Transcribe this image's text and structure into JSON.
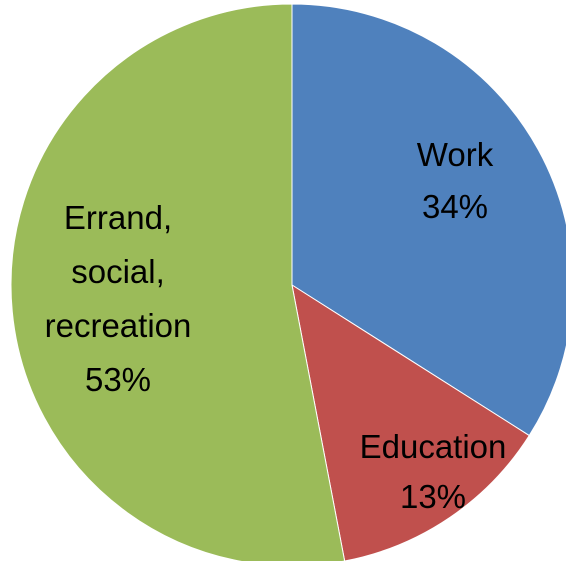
{
  "chart_data": {
    "type": "pie",
    "title": "",
    "slices": [
      {
        "name": "Work",
        "value": 34,
        "value_label": "34%",
        "color": "#4F81BD"
      },
      {
        "name": "Education",
        "value": 13,
        "value_label": "13%",
        "color": "#C0504D"
      },
      {
        "name": "Errand, social, recreation",
        "value": 53,
        "value_label": "53%",
        "color": "#9BBB59"
      }
    ],
    "legend": "none",
    "start_angle": "12 o'clock",
    "direction": "clockwise"
  },
  "labels": {
    "work": {
      "lines": [
        "Work",
        "34%"
      ]
    },
    "education": {
      "lines": [
        "Education",
        "13%"
      ]
    },
    "errand": {
      "lines": [
        "Errand,",
        "social,",
        "recreation",
        "53%"
      ]
    }
  }
}
